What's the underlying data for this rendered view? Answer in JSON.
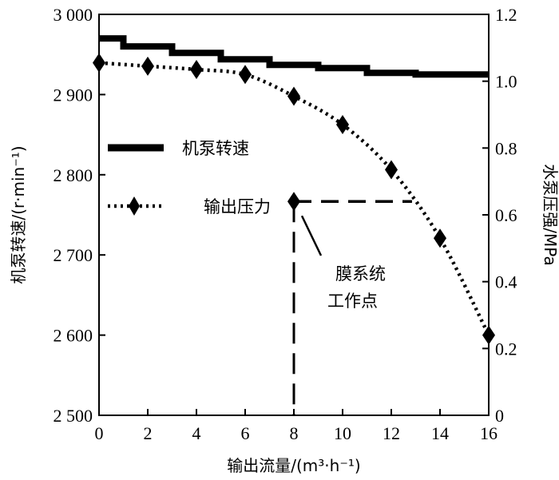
{
  "chart_data": {
    "type": "line",
    "x_axis": {
      "label": "输出流量/(m³·h⁻¹)",
      "range": [
        0,
        16
      ],
      "ticks": [
        "0",
        "2",
        "4",
        "6",
        "8",
        "10",
        "12",
        "14",
        "16"
      ],
      "tick_values": [
        0,
        2,
        4,
        6,
        8,
        10,
        12,
        14,
        16
      ]
    },
    "y_left": {
      "label": "机泵转速/(r·min⁻¹)",
      "range": [
        2500,
        3000
      ],
      "ticks": [
        "2 500",
        "2 600",
        "2 700",
        "2 800",
        "2 900",
        "3 000"
      ],
      "tick_values": [
        2500,
        2600,
        2700,
        2800,
        2900,
        3000
      ]
    },
    "y_right": {
      "label": "水泵压强/MPa",
      "range": [
        0,
        1.2
      ],
      "ticks": [
        "0",
        "0.2",
        "0.4",
        "0.6",
        "0.8",
        "1.0",
        "1.2"
      ],
      "tick_values": [
        0,
        0.2,
        0.4,
        0.6,
        0.8,
        1.0,
        1.2
      ]
    },
    "series": [
      {
        "name": "机泵转速",
        "axis": "left",
        "style": "solid-thick",
        "x": [
          0,
          2,
          4,
          6,
          8,
          10,
          12,
          14,
          16
        ],
        "y": [
          2970,
          2960,
          2952,
          2944,
          2937,
          2933,
          2927,
          2925,
          2925
        ]
      },
      {
        "name": "输出压力",
        "axis": "right",
        "style": "dotted-diamond",
        "x": [
          0,
          2,
          4,
          6,
          8,
          10,
          12,
          14,
          16
        ],
        "y": [
          1.055,
          1.045,
          1.035,
          1.02,
          0.955,
          0.87,
          0.735,
          0.53,
          0.24
        ]
      }
    ],
    "annotation": {
      "text_line1": "膜系统",
      "text_line2": "工作点",
      "point": {
        "x": 8,
        "y_right": 0.64
      }
    },
    "legend": {
      "placement": "left-middle"
    },
    "grid": false
  }
}
